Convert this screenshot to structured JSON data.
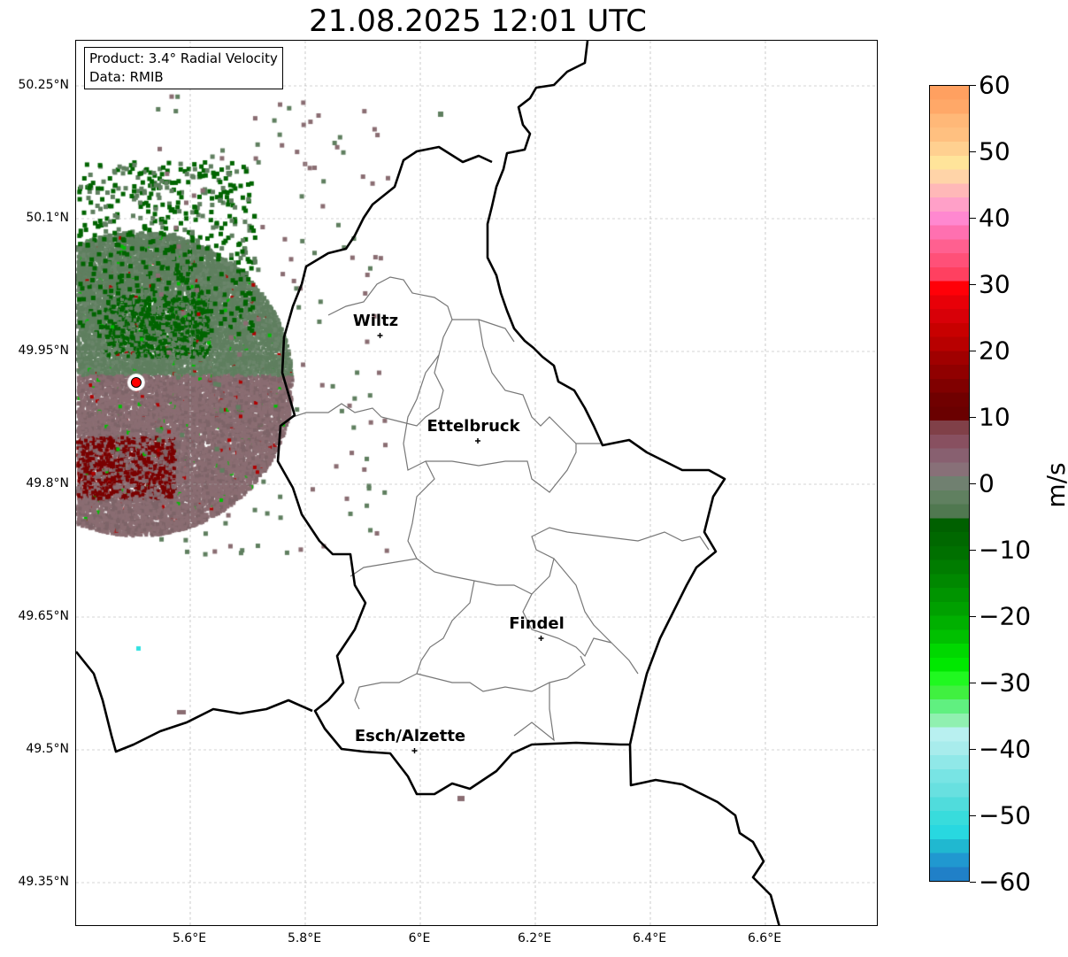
{
  "title": "21.08.2025 12:01 UTC",
  "info": {
    "product": "Product: 3.4° Radial Velocity",
    "data": "Data: RMIB"
  },
  "lat_ticks": [
    {
      "value": 50.25,
      "label": "50.25°N"
    },
    {
      "value": 50.1,
      "label": "50.1°N"
    },
    {
      "value": 49.95,
      "label": "49.95°N"
    },
    {
      "value": 49.8,
      "label": "49.8°N"
    },
    {
      "value": 49.65,
      "label": "49.65°N"
    },
    {
      "value": 49.5,
      "label": "49.5°N"
    },
    {
      "value": 49.35,
      "label": "49.35°N"
    }
  ],
  "lon_ticks": [
    {
      "value": 5.6,
      "label": "5.6°E"
    },
    {
      "value": 5.8,
      "label": "5.8°E"
    },
    {
      "value": 6.0,
      "label": "6°E"
    },
    {
      "value": 6.2,
      "label": "6.2°E"
    },
    {
      "value": 6.4,
      "label": "6.4°E"
    },
    {
      "value": 6.6,
      "label": "6.6°E"
    }
  ],
  "cities": [
    {
      "name": "Wiltz",
      "lon": 5.93,
      "lat": 49.968
    },
    {
      "name": "Ettelbruck",
      "lon": 6.1,
      "lat": 49.849
    },
    {
      "name": "Findel",
      "lon": 6.21,
      "lat": 49.626
    },
    {
      "name": "Esch/Alzette",
      "lon": 5.99,
      "lat": 49.499
    }
  ],
  "radar_site": {
    "lon": 5.506,
    "lat": 49.915,
    "color": "#ff0000"
  },
  "colorbar": {
    "unit": "m/s",
    "min": -60,
    "max": 60,
    "ticks": [
      {
        "value": 60,
        "label": "60"
      },
      {
        "value": 50,
        "label": "50"
      },
      {
        "value": 40,
        "label": "40"
      },
      {
        "value": 30,
        "label": "30"
      },
      {
        "value": 20,
        "label": "20"
      },
      {
        "value": 10,
        "label": "10"
      },
      {
        "value": 0,
        "label": "0"
      },
      {
        "value": -10,
        "label": "−10"
      },
      {
        "value": -20,
        "label": "−20"
      },
      {
        "value": -30,
        "label": "−30"
      },
      {
        "value": -40,
        "label": "−40"
      },
      {
        "value": -50,
        "label": "−50"
      },
      {
        "value": -60,
        "label": "−60"
      }
    ],
    "colors_top_to_bottom": [
      "#ffa060",
      "#ffa868",
      "#ffb878",
      "#ffc080",
      "#ffd090",
      "#ffe49a",
      "#ffd4a8",
      "#ffb8b8",
      "#ffa0c8",
      "#ff88d0",
      "#ff70b0",
      "#ff6090",
      "#ff5078",
      "#ff4060",
      "#ff0008",
      "#e80008",
      "#d80008",
      "#c80000",
      "#b80000",
      "#a00000",
      "#900000",
      "#800000",
      "#700000",
      "#6a0000",
      "#804048",
      "#885060",
      "#886070",
      "#887078",
      "#708070",
      "#608060",
      "#507850",
      "#006000",
      "#006800",
      "#007000",
      "#007c00",
      "#008800",
      "#009400",
      "#00a000",
      "#00b000",
      "#00c000",
      "#00d800",
      "#00e800",
      "#20f820",
      "#40f040",
      "#60f080",
      "#90f0b0",
      "#b8f0f0",
      "#a8ecec",
      "#90e8e8",
      "#78e4e4",
      "#68e0e0",
      "#50dcdc",
      "#38dcdc",
      "#28d8e0",
      "#20b8d0",
      "#2098d0",
      "#2080c8"
    ]
  }
}
